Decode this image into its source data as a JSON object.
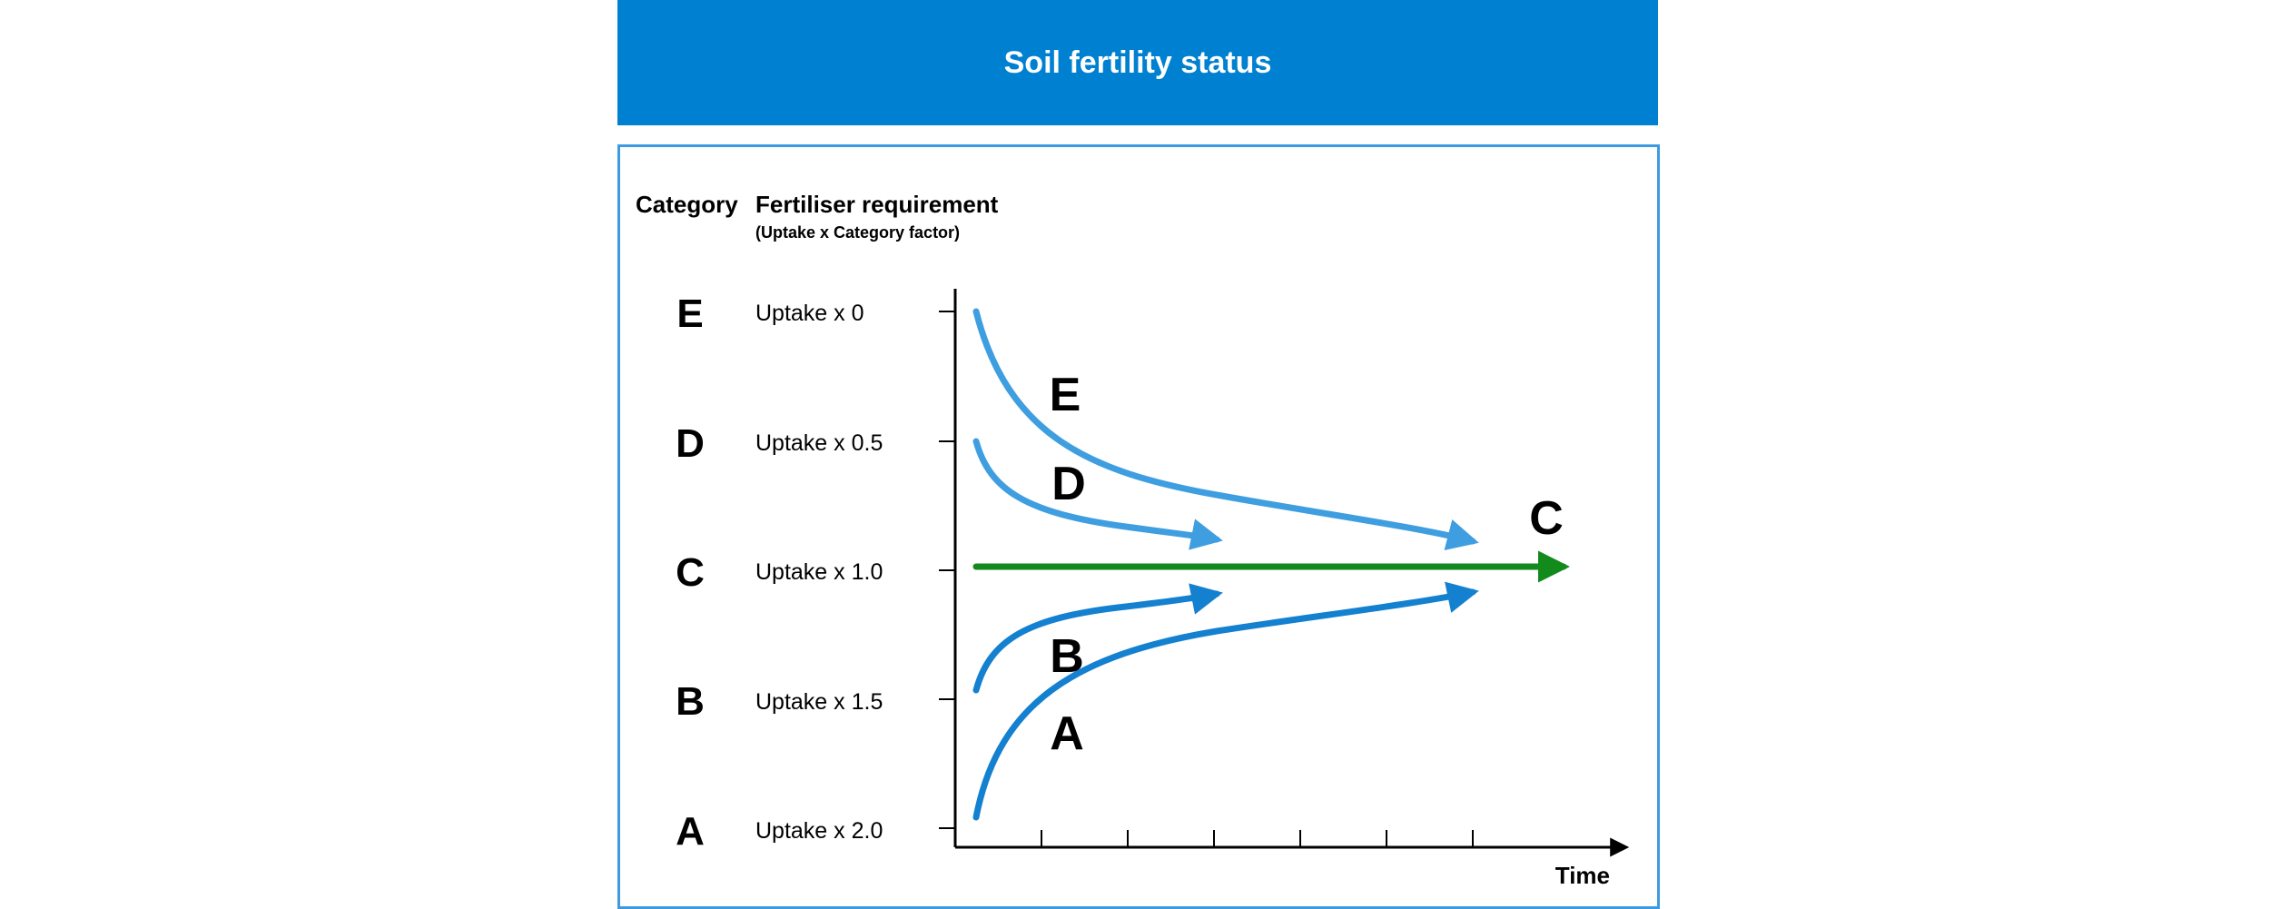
{
  "header": {
    "title": "Soil fertility status"
  },
  "columns": {
    "category": "Category",
    "requirement": "Fertiliser requirement",
    "requirement_note": "(Uptake x Category factor)"
  },
  "rows": [
    {
      "category": "E",
      "requirement": "Uptake x 0"
    },
    {
      "category": "D",
      "requirement": "Uptake x 0.5"
    },
    {
      "category": "C",
      "requirement": "Uptake x 1.0"
    },
    {
      "category": "B",
      "requirement": "Uptake x 1.5"
    },
    {
      "category": "A",
      "requirement": "Uptake x 2.0"
    }
  ],
  "curves": {
    "E": "E",
    "D": "D",
    "C": "C",
    "B": "B",
    "A": "A"
  },
  "axis": {
    "x_label": "Time"
  },
  "colors": {
    "header": "#0080d0",
    "border": "#3c9be0",
    "upper_curves": "#3f9ee0",
    "lower_curves": "#1380d0",
    "baseline": "#128a1c"
  }
}
